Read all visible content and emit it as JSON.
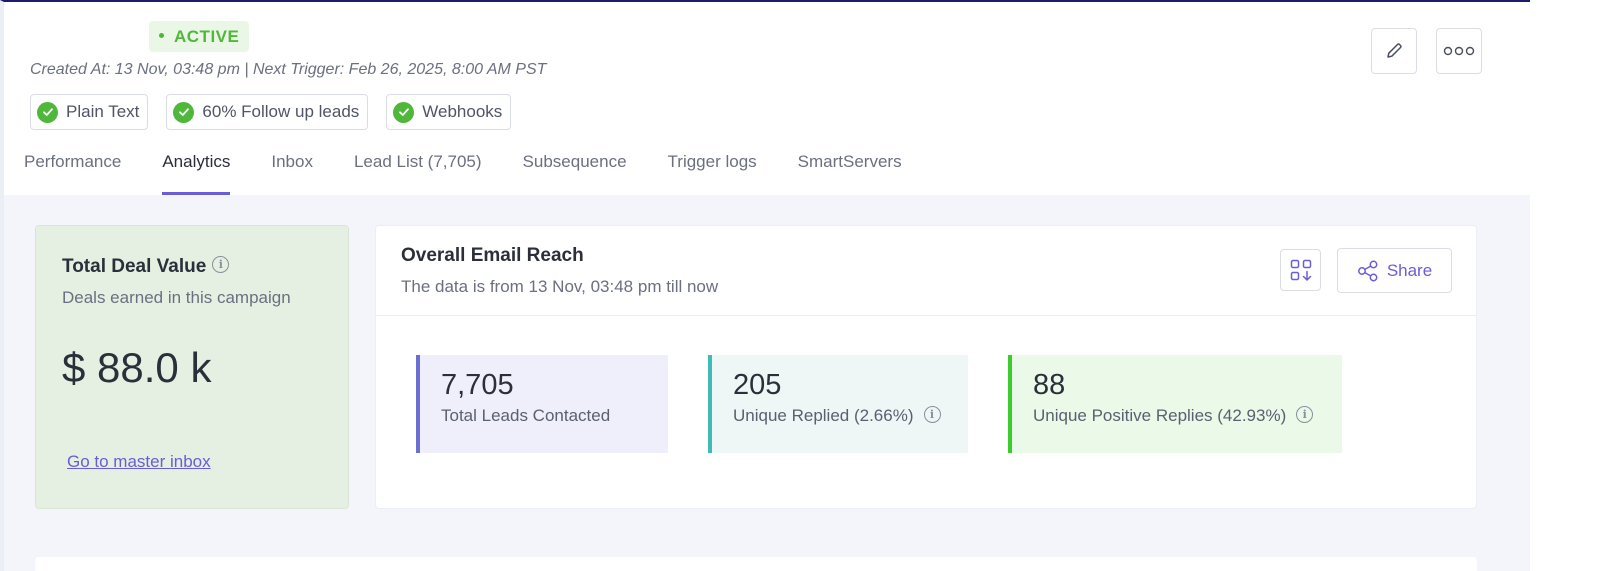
{
  "header": {
    "status": "ACTIVE",
    "meta": "Created At: 13 Nov, 03:48 pm | Next Trigger: Feb 26, 2025, 8:00 AM PST",
    "chips": [
      "Plain Text",
      "60% Follow up leads",
      "Webhooks"
    ]
  },
  "tabs": [
    "Performance",
    "Analytics",
    "Inbox",
    "Lead List (7,705)",
    "Subsequence",
    "Trigger logs",
    "SmartServers"
  ],
  "active_tab": "Analytics",
  "deal": {
    "title": "Total Deal Value",
    "subtitle": "Deals earned in this campaign",
    "value": "$ 88.0 k",
    "link": "Go to master inbox"
  },
  "reach": {
    "title": "Overall Email Reach",
    "subtitle": "The data is from 13 Nov, 03:48 pm till now",
    "share_label": "Share",
    "stats": [
      {
        "value": "7,705",
        "label": "Total Leads Contacted"
      },
      {
        "value": "205",
        "label": "Unique Replied (2.66%)"
      },
      {
        "value": "88",
        "label": "Unique Positive Replies (42.93%)"
      }
    ]
  },
  "colors": {
    "accent": "#6a5dd6",
    "active_green": "#4fb83b",
    "deal_bg": "#e6f0e2"
  },
  "icons": [
    "check-icon",
    "edit-icon",
    "more-icon",
    "info-icon",
    "qr-icon",
    "share-icon"
  ]
}
